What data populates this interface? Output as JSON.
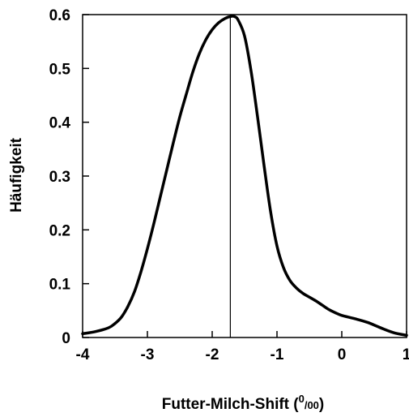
{
  "chart_data": {
    "type": "line",
    "title": "",
    "xlabel": "Futter-Milch-Shift (",
    "xlabel_unit_num": "0",
    "xlabel_unit_den": "/00",
    "xlabel_close": ")",
    "ylabel": "Häufigkeit",
    "xlim": [
      -4,
      1
    ],
    "ylim": [
      0,
      0.6
    ],
    "xticks": [
      -4,
      -3,
      -2,
      -1,
      0,
      1
    ],
    "xtick_labels": [
      "-4",
      "-3",
      "-2",
      "-1",
      "0",
      "1"
    ],
    "yticks": [
      0,
      0.1,
      0.2,
      0.3,
      0.4,
      0.5,
      0.6
    ],
    "ytick_labels": [
      "0",
      "0.1",
      "0.2",
      "0.3",
      "0.4",
      "0.5",
      "0.6"
    ],
    "grid": false,
    "vline_x": -1.72,
    "series": [
      {
        "x": [
          -4.0,
          -3.8,
          -3.6,
          -3.5,
          -3.4,
          -3.3,
          -3.2,
          -3.1,
          -3.0,
          -2.9,
          -2.8,
          -2.7,
          -2.6,
          -2.5,
          -2.4,
          -2.3,
          -2.2,
          -2.1,
          -2.0,
          -1.9,
          -1.8,
          -1.7,
          -1.65,
          -1.6,
          -1.5,
          -1.4,
          -1.3,
          -1.2,
          -1.1,
          -1.0,
          -0.9,
          -0.8,
          -0.7,
          -0.6,
          -0.5,
          -0.4,
          -0.3,
          -0.2,
          -0.1,
          0.0,
          0.2,
          0.4,
          0.6,
          0.8,
          1.0
        ],
        "y": [
          0.007,
          0.011,
          0.018,
          0.026,
          0.038,
          0.058,
          0.085,
          0.122,
          0.165,
          0.212,
          0.262,
          0.312,
          0.362,
          0.41,
          0.452,
          0.493,
          0.527,
          0.553,
          0.572,
          0.585,
          0.593,
          0.597,
          0.596,
          0.59,
          0.56,
          0.495,
          0.41,
          0.32,
          0.235,
          0.17,
          0.13,
          0.106,
          0.092,
          0.082,
          0.075,
          0.068,
          0.06,
          0.052,
          0.046,
          0.041,
          0.035,
          0.028,
          0.018,
          0.009,
          0.004
        ]
      }
    ]
  }
}
